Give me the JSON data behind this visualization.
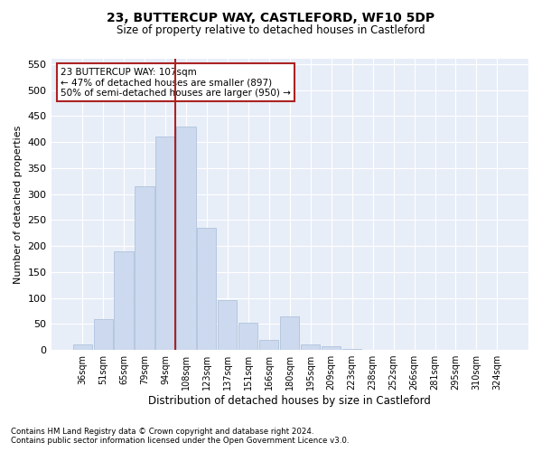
{
  "title": "23, BUTTERCUP WAY, CASTLEFORD, WF10 5DP",
  "subtitle": "Size of property relative to detached houses in Castleford",
  "xlabel": "Distribution of detached houses by size in Castleford",
  "ylabel": "Number of detached properties",
  "bar_labels": [
    "36sqm",
    "51sqm",
    "65sqm",
    "79sqm",
    "94sqm",
    "108sqm",
    "123sqm",
    "137sqm",
    "151sqm",
    "166sqm",
    "180sqm",
    "195sqm",
    "209sqm",
    "223sqm",
    "238sqm",
    "252sqm",
    "266sqm",
    "281sqm",
    "295sqm",
    "310sqm",
    "324sqm"
  ],
  "bar_heights": [
    10,
    60,
    190,
    315,
    410,
    430,
    235,
    95,
    53,
    20,
    65,
    10,
    7,
    2,
    1,
    1,
    1,
    1,
    0,
    0,
    1
  ],
  "bar_color": "#ccd9ee",
  "bar_edge_color": "#a8bdd8",
  "vline_x": 4.5,
  "vline_color": "#aa2222",
  "annotation_text": "23 BUTTERCUP WAY: 107sqm\n← 47% of detached houses are smaller (897)\n50% of semi-detached houses are larger (950) →",
  "annotation_box_color": "#ffffff",
  "annotation_box_edge": "#aa2222",
  "ylim": [
    0,
    560
  ],
  "yticks": [
    0,
    50,
    100,
    150,
    200,
    250,
    300,
    350,
    400,
    450,
    500,
    550
  ],
  "footnote1": "Contains HM Land Registry data © Crown copyright and database right 2024.",
  "footnote2": "Contains public sector information licensed under the Open Government Licence v3.0.",
  "plot_bg_color": "#e8eef8"
}
